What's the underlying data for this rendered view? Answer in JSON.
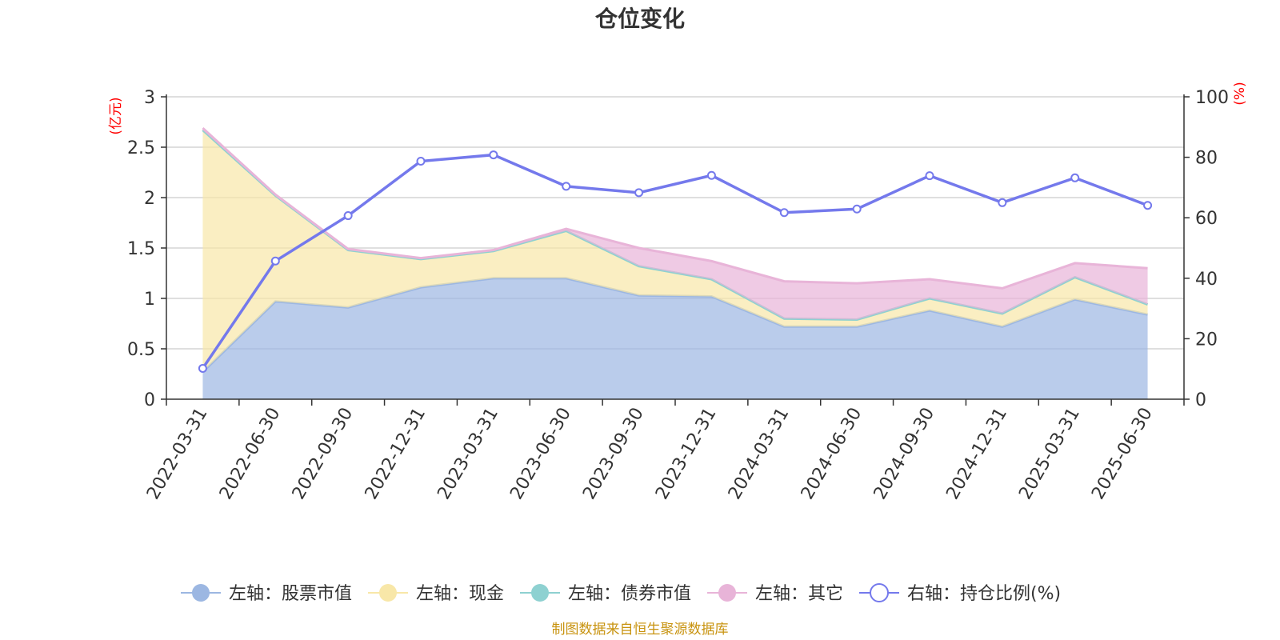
{
  "chart_data": {
    "type": "area",
    "title": "仓位变化",
    "source": "制图数据来自恒生聚源数据库",
    "left_axis": {
      "unit": "(亿元)",
      "ticks": [
        "0",
        "0.5",
        "1",
        "1.5",
        "2",
        "2.5",
        "3"
      ],
      "ylim": [
        0,
        3
      ]
    },
    "right_axis": {
      "unit": "(%)",
      "ticks": [
        "0",
        "20",
        "40",
        "60",
        "80",
        "100"
      ],
      "ylim": [
        0,
        100
      ]
    },
    "categories": [
      "2022-03-31",
      "2022-06-30",
      "2022-09-30",
      "2022-12-31",
      "2023-03-31",
      "2023-06-30",
      "2023-09-30",
      "2023-12-31",
      "2024-03-31",
      "2024-06-30",
      "2024-09-30",
      "2024-12-31",
      "2025-03-31",
      "2025-06-30"
    ],
    "stacked_series": [
      {
        "name": "左轴：股票市值",
        "color": "#9cb7e2",
        "values": [
          0.27,
          0.97,
          0.91,
          1.11,
          1.2,
          1.2,
          1.03,
          1.02,
          0.72,
          0.72,
          0.88,
          0.72,
          0.99,
          0.84
        ]
      },
      {
        "name": "左轴：现金",
        "color": "#f8e7a8",
        "values": [
          2.4,
          1.05,
          0.57,
          0.28,
          0.27,
          0.47,
          0.29,
          0.17,
          0.08,
          0.07,
          0.12,
          0.13,
          0.22,
          0.1
        ]
      },
      {
        "name": "左轴：债券市值",
        "color": "#8ed1d1",
        "values": [
          0,
          0,
          0,
          0,
          0,
          0,
          0,
          0,
          0,
          0,
          0,
          0,
          0,
          0
        ]
      },
      {
        "name": "左轴：其它",
        "color": "#e8b4d8",
        "values": [
          0.02,
          0.01,
          0.01,
          0.01,
          0.01,
          0.02,
          0.18,
          0.18,
          0.37,
          0.36,
          0.19,
          0.25,
          0.14,
          0.36
        ]
      }
    ],
    "line_series": {
      "name": "右轴：持仓比例(%)",
      "color": "#7479ec",
      "values": [
        10.2,
        45.7,
        60.7,
        78.7,
        80.8,
        70.4,
        68.3,
        74.0,
        61.7,
        62.9,
        73.9,
        65.0,
        73.2,
        64.1
      ]
    },
    "grid": true,
    "legend_position": "bottom"
  }
}
